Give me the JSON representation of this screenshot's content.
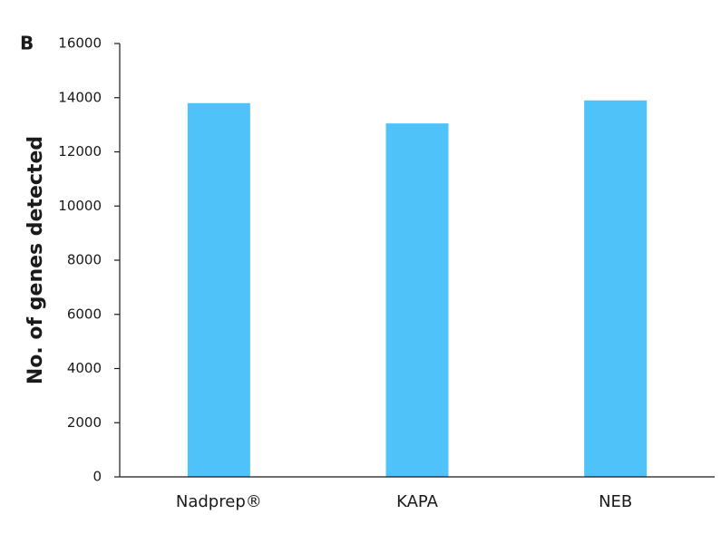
{
  "chart_data": {
    "type": "bar",
    "panel_label": "B",
    "y_label": "No. of genes detected",
    "categories": [
      "Nadprep®",
      "KAPA",
      "NEB"
    ],
    "values": [
      13800,
      13050,
      13900
    ],
    "color": "#4fc3f9",
    "ylim": [
      0,
      16000
    ],
    "yticks": [
      0,
      2000,
      4000,
      6000,
      8000,
      10000,
      12000,
      14000,
      16000
    ],
    "grid": false
  }
}
